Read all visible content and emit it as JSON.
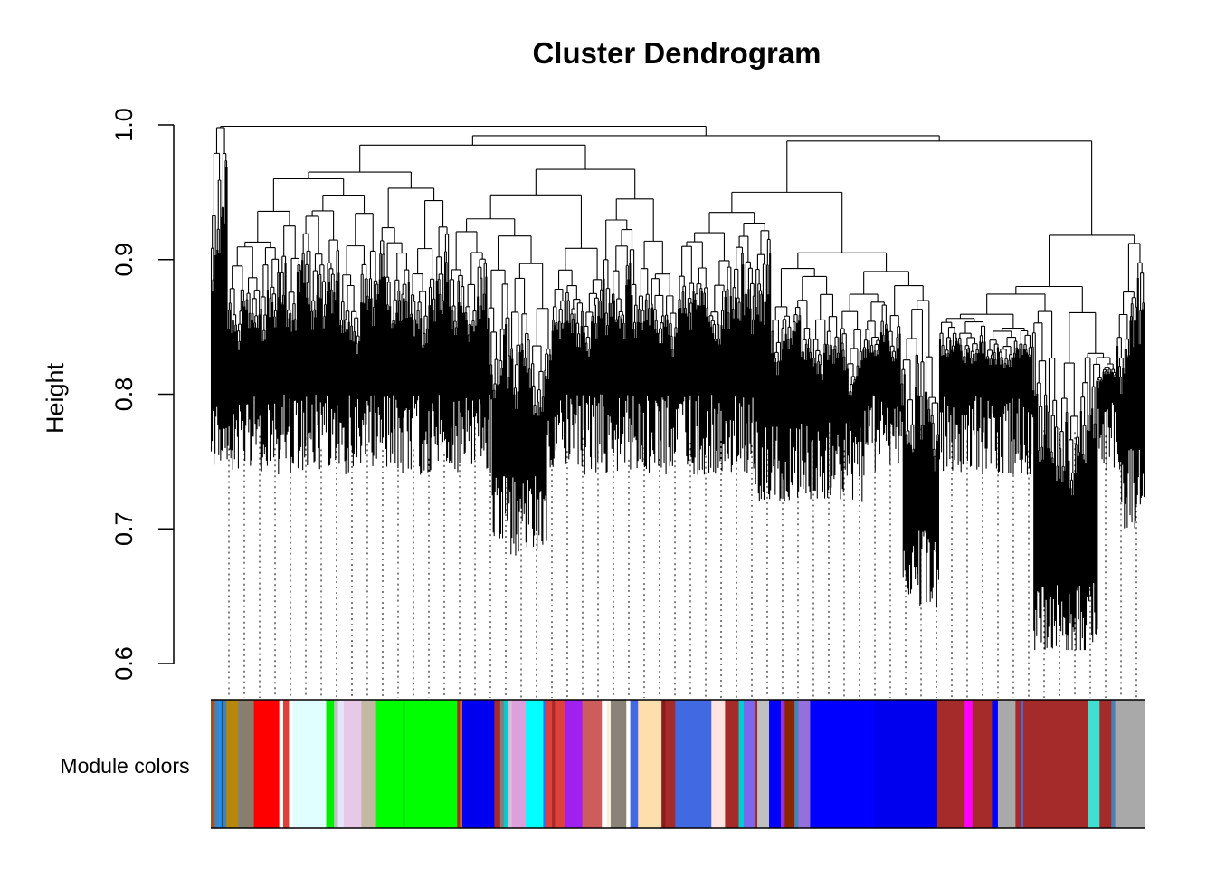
{
  "chart_data": {
    "type": "dendrogram",
    "title": "Cluster Dendrogram",
    "ylabel": "Height",
    "ylim": [
      0.6,
      1.0
    ],
    "yticks": [
      0.6,
      0.7,
      0.8,
      0.9,
      1.0
    ],
    "ytick_labels": [
      "0.6",
      "0.7",
      "0.8",
      "0.9",
      "1.0"
    ],
    "leaf_count": 1000,
    "major_merges": [
      {
        "x_range": [
          0.0,
          0.18
        ],
        "height": 0.965
      },
      {
        "x_range": [
          0.18,
          0.42
        ],
        "height": 0.967
      },
      {
        "x_range": [
          0.42,
          0.6
        ],
        "height": 0.95
      },
      {
        "x_range": [
          0.6,
          0.97
        ],
        "height": 0.918
      },
      {
        "x_range": [
          0.6,
          0.78
        ],
        "height": 0.91
      },
      {
        "x_range": [
          0.78,
          0.97
        ],
        "height": 0.88
      },
      {
        "x_range": [
          0.97,
          1.0
        ],
        "height": 0.915
      }
    ],
    "min_leaf_height": 0.61,
    "color_band": {
      "label": "Module colors",
      "segments": [
        {
          "color": "#a0522d",
          "width": 0.004
        },
        {
          "color": "#4682b4",
          "width": 0.004
        },
        {
          "color": "#1e90ff",
          "width": 0.003
        },
        {
          "color": "#2f4f4f",
          "width": 0.002
        },
        {
          "color": "#4682b4",
          "width": 0.003
        },
        {
          "color": "#b8860b",
          "width": 0.012
        },
        {
          "color": "#808080",
          "width": 0.004
        },
        {
          "color": "#8b7d6b",
          "width": 0.012
        },
        {
          "color": "#ff0000",
          "width": 0.008
        },
        {
          "color": "#ff0000",
          "width": 0.018
        },
        {
          "color": "#ffffff",
          "width": 0.004
        },
        {
          "color": "#e0403a",
          "width": 0.006
        },
        {
          "color": "#ffffff",
          "width": 0.004
        },
        {
          "color": "#e0ffff",
          "width": 0.034
        },
        {
          "color": "#00ee00",
          "width": 0.008
        },
        {
          "color": "#c0c0c0",
          "width": 0.004
        },
        {
          "color": "#e6e6fa",
          "width": 0.006
        },
        {
          "color": "#e8c8e8",
          "width": 0.018
        },
        {
          "color": "#c2b8a3",
          "width": 0.015
        },
        {
          "color": "#00ff00",
          "width": 0.027
        },
        {
          "color": "#00ee00",
          "width": 0.003
        },
        {
          "color": "#00ff00",
          "width": 0.053
        },
        {
          "color": "#a52a2a",
          "width": 0.003
        },
        {
          "color": "#ff8c00",
          "width": 0.002
        },
        {
          "color": "#0000ff",
          "width": 0.003
        },
        {
          "color": "#0000ee",
          "width": 0.03
        },
        {
          "color": "#a52a2a",
          "width": 0.006
        },
        {
          "color": "#808080",
          "width": 0.004
        },
        {
          "color": "#00ced1",
          "width": 0.004
        },
        {
          "color": "#d8bfd8",
          "width": 0.004
        },
        {
          "color": "#dda0dd",
          "width": 0.014
        },
        {
          "color": "#00ffff",
          "width": 0.018
        },
        {
          "color": "#4169e1",
          "width": 0.003
        },
        {
          "color": "#e0403a",
          "width": 0.006
        },
        {
          "color": "#a52a2a",
          "width": 0.003
        },
        {
          "color": "#e0403a",
          "width": 0.01
        },
        {
          "color": "#a020f0",
          "width": 0.018
        },
        {
          "color": "#cd5c5c",
          "width": 0.02
        },
        {
          "color": "#ffffff",
          "width": 0.005
        },
        {
          "color": "#f5f0e0",
          "width": 0.004
        },
        {
          "color": "#8b8378",
          "width": 0.016
        },
        {
          "color": "#ffffff",
          "width": 0.004
        },
        {
          "color": "#4169e1",
          "width": 0.008
        },
        {
          "color": "#ffdead",
          "width": 0.024
        },
        {
          "color": "#8b1a1a",
          "width": 0.004
        },
        {
          "color": "#a52a2a",
          "width": 0.01
        },
        {
          "color": "#4169e1",
          "width": 0.005
        },
        {
          "color": "#4169e1",
          "width": 0.032
        },
        {
          "color": "#ffe4e1",
          "width": 0.014
        },
        {
          "color": "#a52a2a",
          "width": 0.014
        },
        {
          "color": "#00ced1",
          "width": 0.005
        },
        {
          "color": "#7b68ee",
          "width": 0.012
        },
        {
          "color": "#a52a2a",
          "width": 0.002
        },
        {
          "color": "#c0c0c0",
          "width": 0.012
        },
        {
          "color": "#0000ff",
          "width": 0.012
        },
        {
          "color": "#9932cc",
          "width": 0.004
        },
        {
          "color": "#8b2500",
          "width": 0.01
        },
        {
          "color": "#4682b4",
          "width": 0.004
        },
        {
          "color": "#9370db",
          "width": 0.012
        },
        {
          "color": "#0000ff",
          "width": 0.066
        },
        {
          "color": "#0000ee",
          "width": 0.064
        },
        {
          "color": "#a52a2a",
          "width": 0.028
        },
        {
          "color": "#ff00ff",
          "width": 0.008
        },
        {
          "color": "#a52a2a",
          "width": 0.02
        },
        {
          "color": "#0000ff",
          "width": 0.006
        },
        {
          "color": "#a9a9a9",
          "width": 0.018
        },
        {
          "color": "#a52a2a",
          "width": 0.006
        },
        {
          "color": "#4169e1",
          "width": 0.002
        },
        {
          "color": "#a52a2a",
          "width": 0.066
        },
        {
          "color": "#40e0d0",
          "width": 0.012
        },
        {
          "color": "#a52a2a",
          "width": 0.012
        },
        {
          "color": "#4682b4",
          "width": 0.004
        },
        {
          "color": "#a9a9a9",
          "width": 0.03
        }
      ]
    }
  }
}
